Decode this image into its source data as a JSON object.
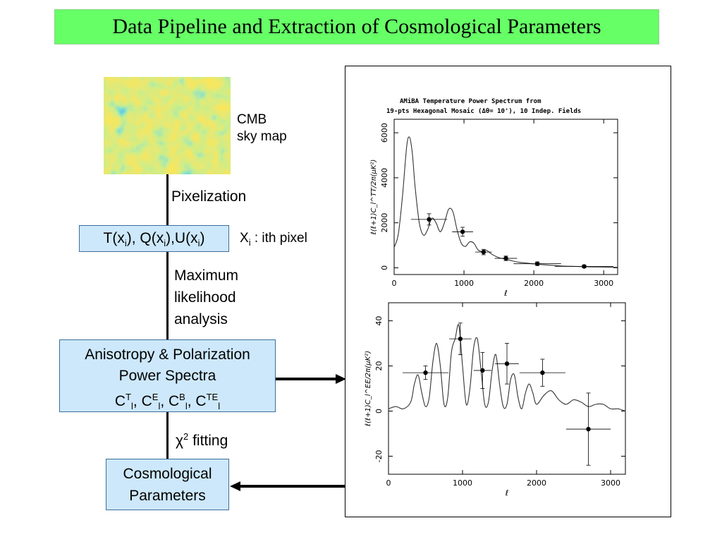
{
  "title": "Data Pipeline and Extraction of Cosmological Parameters",
  "skymap": {
    "label_line1": "CMB",
    "label_line2": "sky map"
  },
  "steps": {
    "pixelization": "Pixelization",
    "pixel_box": {
      "prefix_T": "T(x",
      "i": "i",
      "mid1": "), Q(x",
      "mid2": "),U(x",
      "end": ")"
    },
    "pixel_note": {
      "x": "X",
      "i": "i",
      "rest": " : ith pixel"
    },
    "ml_line1": "Maximum",
    "ml_line2": "likelihood",
    "ml_line3": "analysis",
    "spectra_line1": "Anisotropy & Polarization",
    "spectra_line2": "Power Spectra",
    "spectra_sym": {
      "C": "C",
      "T": "T",
      "E": "E",
      "B": "B",
      "TE": "TE",
      "l": "l",
      "sep": ", "
    },
    "fit_chi": "χ",
    "fit_sup": "2",
    "fit_text": " fitting",
    "params_line1": "Cosmological",
    "params_line2": "Parameters"
  },
  "chart_data": [
    {
      "type": "line",
      "title": "AMiBA Temperature Power Spectrum from",
      "subtitle": "19-pts Hexagonal Mosaic (Δθ= 10'), 10 Indep. Fields",
      "xlabel": "ℓ",
      "ylabel": "ℓ(ℓ+1)C_l^TT/2π(μK²)",
      "xlim": [
        0,
        3200
      ],
      "ylim": [
        -300,
        6600
      ],
      "xticks": [
        0,
        1000,
        2000,
        3000
      ],
      "yticks": [
        0,
        2000,
        4000,
        6000
      ],
      "theory_curve": {
        "x": [
          0,
          60,
          120,
          180,
          220,
          260,
          300,
          360,
          420,
          480,
          540,
          600,
          660,
          720,
          780,
          840,
          900,
          960,
          1020,
          1080,
          1140,
          1200,
          1260,
          1320,
          1400,
          1500,
          1600,
          1700,
          1800,
          1900,
          2000,
          2200,
          2400,
          2600,
          2800,
          3000,
          3200
        ],
        "y": [
          900,
          1500,
          3200,
          5400,
          5800,
          5100,
          3600,
          2000,
          1450,
          1700,
          2200,
          2000,
          1600,
          2000,
          2600,
          2500,
          1700,
          1100,
          950,
          1150,
          1100,
          800,
          720,
          780,
          600,
          450,
          380,
          300,
          240,
          210,
          170,
          120,
          80,
          60,
          40,
          30,
          20
        ]
      },
      "points": [
        {
          "x": 500,
          "y": 2150,
          "xerr": 260,
          "yerr": 250
        },
        {
          "x": 980,
          "y": 1600,
          "xerr": 150,
          "yerr": 200
        },
        {
          "x": 1280,
          "y": 700,
          "xerr": 120,
          "yerr": 120
        },
        {
          "x": 1600,
          "y": 420,
          "xerr": 160,
          "yerr": 100
        },
        {
          "x": 2050,
          "y": 180,
          "xerr": 340,
          "yerr": 80
        },
        {
          "x": 2720,
          "y": 60,
          "xerr": 420,
          "yerr": 60
        }
      ]
    },
    {
      "type": "line",
      "xlabel": "ℓ",
      "ylabel": "ℓ(ℓ+1)C_l^EE/2π(μK²)",
      "xlim": [
        0,
        3200
      ],
      "ylim": [
        -28,
        48
      ],
      "xticks": [
        0,
        1000,
        2000,
        3000
      ],
      "yticks": [
        -20,
        0,
        20,
        40
      ],
      "theory_curve": {
        "x": [
          0,
          100,
          200,
          300,
          350,
          400,
          450,
          500,
          550,
          600,
          650,
          700,
          750,
          800,
          850,
          900,
          950,
          1000,
          1050,
          1100,
          1150,
          1200,
          1250,
          1300,
          1350,
          1400,
          1450,
          1500,
          1550,
          1600,
          1650,
          1700,
          1750,
          1800,
          1850,
          1900,
          1950,
          2000,
          2100,
          2200,
          2300,
          2400,
          2500,
          2600,
          2700,
          2800,
          2900,
          3000,
          3100,
          3200
        ],
        "y": [
          1,
          2,
          1,
          4,
          12,
          16,
          8,
          2,
          6,
          22,
          30,
          20,
          3,
          6,
          26,
          32,
          38,
          20,
          3,
          10,
          28,
          32,
          18,
          3,
          4,
          18,
          25,
          12,
          2,
          3,
          14,
          16,
          6,
          1,
          8,
          12,
          8,
          3,
          7,
          9,
          5,
          3,
          5,
          4,
          2,
          3,
          3,
          1,
          1,
          0
        ]
      },
      "points": [
        {
          "x": 500,
          "y": 17,
          "xerr": 310,
          "yerr": 3
        },
        {
          "x": 970,
          "y": 32,
          "xerr": 150,
          "yerr": 7
        },
        {
          "x": 1270,
          "y": 18,
          "xerr": 120,
          "yerr": 8
        },
        {
          "x": 1600,
          "y": 21,
          "xerr": 160,
          "yerr": 9
        },
        {
          "x": 2080,
          "y": 17,
          "xerr": 310,
          "yerr": 6
        },
        {
          "x": 2700,
          "y": -8,
          "xerr": 300,
          "yerr": 16
        }
      ]
    }
  ]
}
